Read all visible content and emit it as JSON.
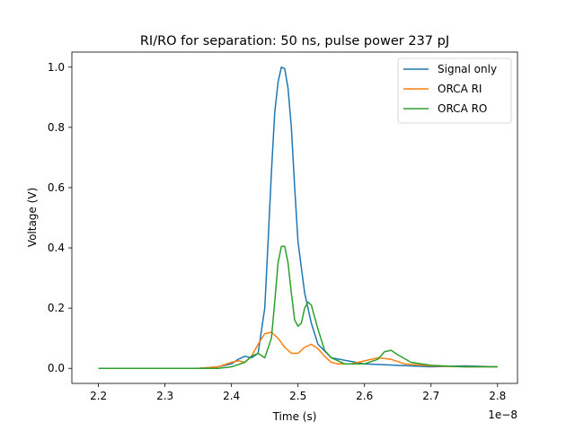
{
  "chart_data": {
    "type": "line",
    "title": "RI/RO for separation: 50 ns, pulse power 237 pJ",
    "xlabel": "Time (s)",
    "ylabel": "Voltage (V)",
    "x_offset_label": "1e−8",
    "xlim": [
      2.16,
      2.83
    ],
    "ylim": [
      -0.05,
      1.05
    ],
    "xticks": [
      2.2,
      2.3,
      2.4,
      2.5,
      2.6,
      2.7,
      2.8
    ],
    "xtick_labels": [
      "2.2",
      "2.3",
      "2.4",
      "2.5",
      "2.6",
      "2.7",
      "2.8"
    ],
    "yticks": [
      0.0,
      0.2,
      0.4,
      0.6,
      0.8,
      1.0
    ],
    "ytick_labels": [
      "0.0",
      "0.2",
      "0.4",
      "0.6",
      "0.8",
      "1.0"
    ],
    "grid": false,
    "legend_position": "top-right",
    "series": [
      {
        "name": "Signal only",
        "color": "#1f77b4",
        "x": [
          2.2,
          2.25,
          2.3,
          2.35,
          2.38,
          2.4,
          2.41,
          2.42,
          2.43,
          2.44,
          2.45,
          2.455,
          2.46,
          2.465,
          2.47,
          2.475,
          2.48,
          2.485,
          2.49,
          2.495,
          2.5,
          2.51,
          2.52,
          2.53,
          2.55,
          2.6,
          2.65,
          2.7,
          2.75,
          2.8
        ],
        "y": [
          0.0,
          0.0,
          0.0,
          0.0,
          0.005,
          0.015,
          0.03,
          0.04,
          0.035,
          0.05,
          0.2,
          0.42,
          0.65,
          0.85,
          0.95,
          1.0,
          0.995,
          0.93,
          0.8,
          0.6,
          0.42,
          0.25,
          0.15,
          0.08,
          0.035,
          0.015,
          0.01,
          0.005,
          0.008,
          0.005
        ]
      },
      {
        "name": "ORCA RI",
        "color": "#ff7f0e",
        "x": [
          2.2,
          2.25,
          2.3,
          2.35,
          2.38,
          2.4,
          2.41,
          2.42,
          2.43,
          2.44,
          2.45,
          2.46,
          2.47,
          2.48,
          2.49,
          2.5,
          2.51,
          2.52,
          2.53,
          2.54,
          2.55,
          2.56,
          2.58,
          2.6,
          2.62,
          2.64,
          2.66,
          2.7,
          2.75,
          2.8
        ],
        "y": [
          0.0,
          0.0,
          0.0,
          0.0,
          0.005,
          0.02,
          0.025,
          0.02,
          0.04,
          0.08,
          0.115,
          0.12,
          0.1,
          0.07,
          0.05,
          0.05,
          0.07,
          0.08,
          0.065,
          0.04,
          0.02,
          0.015,
          0.015,
          0.025,
          0.035,
          0.03,
          0.015,
          0.008,
          0.005,
          0.005
        ]
      },
      {
        "name": "ORCA RO",
        "color": "#2ca02c",
        "x": [
          2.2,
          2.25,
          2.3,
          2.35,
          2.38,
          2.4,
          2.42,
          2.43,
          2.44,
          2.45,
          2.46,
          2.465,
          2.47,
          2.475,
          2.48,
          2.485,
          2.49,
          2.495,
          2.5,
          2.505,
          2.51,
          2.515,
          2.52,
          2.53,
          2.54,
          2.55,
          2.57,
          2.6,
          2.62,
          2.63,
          2.64,
          2.65,
          2.67,
          2.7,
          2.75,
          2.8
        ],
        "y": [
          0.0,
          0.0,
          0.0,
          0.0,
          0.0,
          0.005,
          0.02,
          0.04,
          0.05,
          0.035,
          0.1,
          0.22,
          0.35,
          0.405,
          0.405,
          0.35,
          0.25,
          0.16,
          0.14,
          0.15,
          0.2,
          0.22,
          0.21,
          0.13,
          0.06,
          0.035,
          0.015,
          0.015,
          0.03,
          0.055,
          0.06,
          0.045,
          0.02,
          0.01,
          0.005,
          0.005
        ]
      }
    ]
  }
}
